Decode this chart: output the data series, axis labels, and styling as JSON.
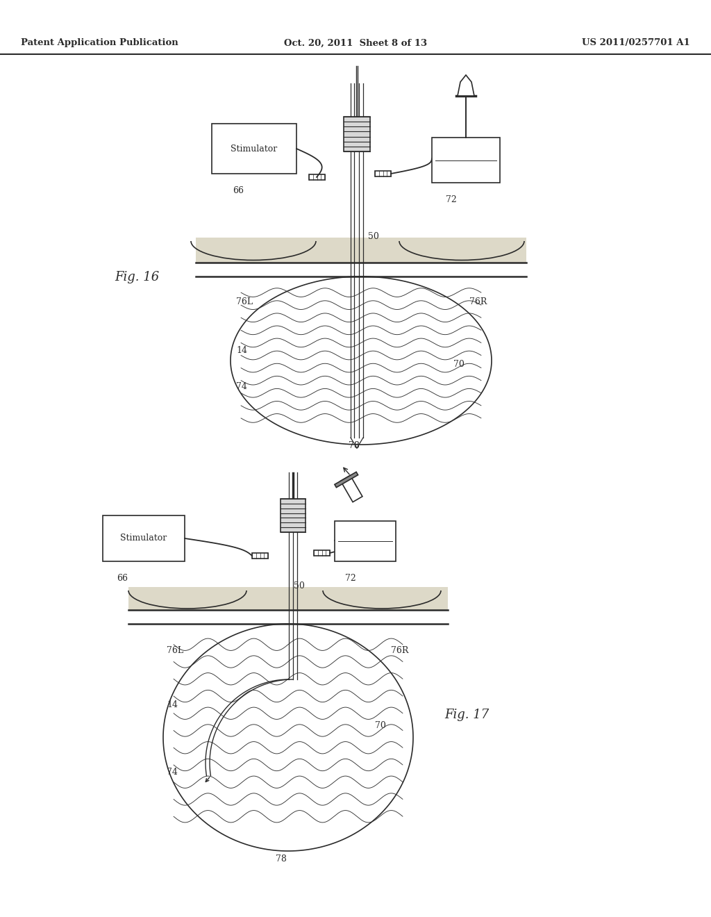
{
  "title_left": "Patent Application Publication",
  "title_center": "Oct. 20, 2011  Sheet 8 of 13",
  "title_right": "US 2011/0257701 A1",
  "fig16_label": "Fig. 16",
  "fig17_label": "Fig. 17",
  "bg": "#ffffff",
  "lc": "#2a2a2a",
  "sand_color": "#ddd9c8",
  "wave_color": "#333333"
}
